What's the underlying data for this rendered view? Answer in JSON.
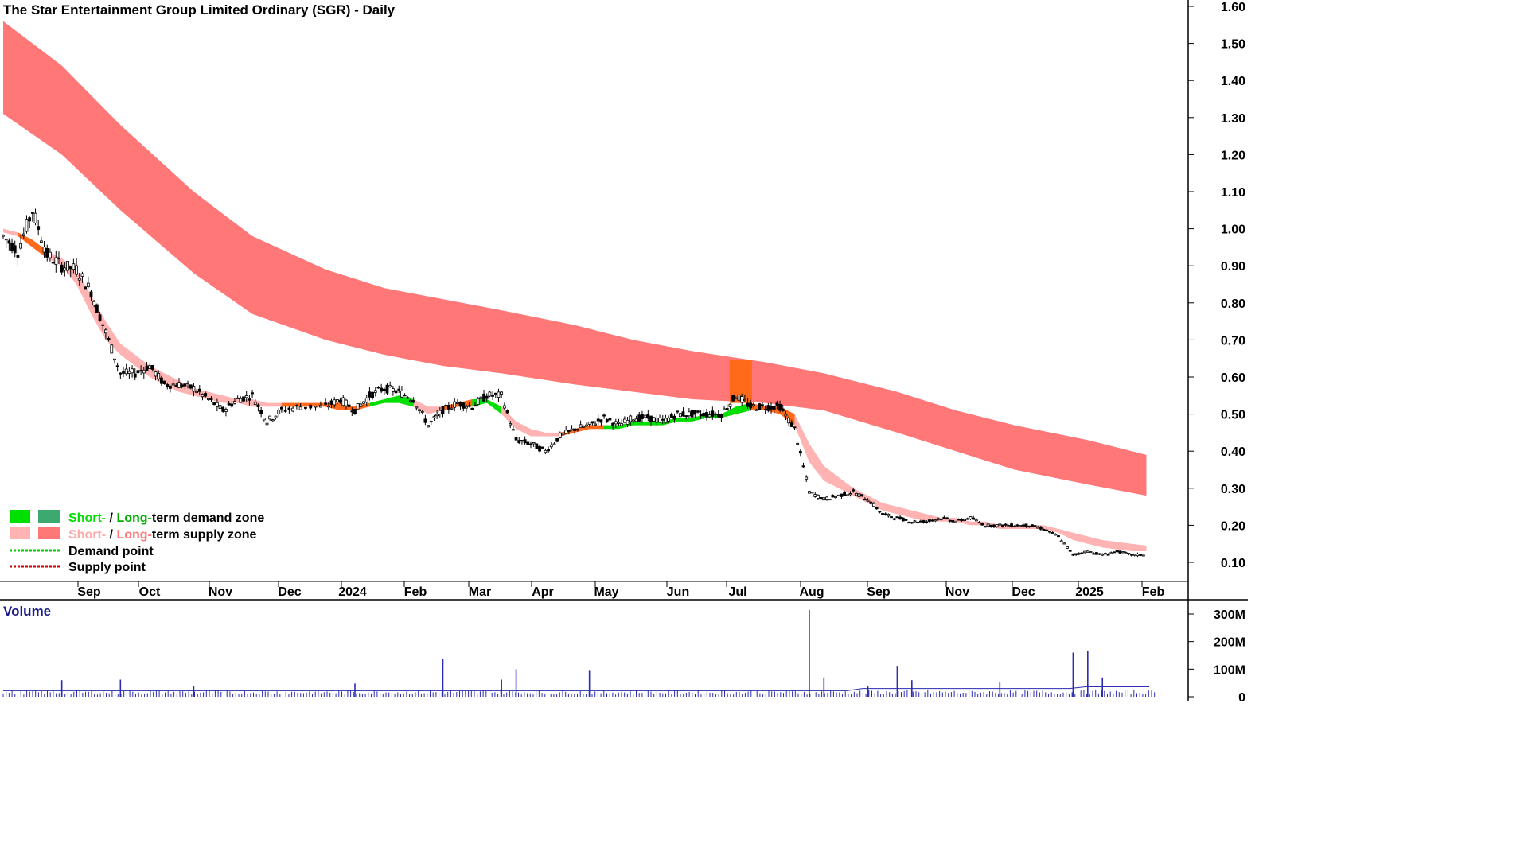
{
  "chart_data": {
    "type": "candlestick",
    "title": "The Star Entertainment Group Limited Ordinary (SGR) - Daily",
    "price_axis": {
      "ticks": [
        "0.10",
        "0.20",
        "0.30",
        "0.40",
        "0.50",
        "0.60",
        "0.70",
        "0.80",
        "0.90",
        "1.00",
        "1.10",
        "1.20",
        "1.30",
        "1.40",
        "1.50",
        "1.60"
      ],
      "range": [
        0.05,
        1.62
      ]
    },
    "x_ticks": [
      "Sep",
      "Oct",
      "Nov",
      "Dec",
      "2024",
      "Feb",
      "Mar",
      "Apr",
      "May",
      "Jun",
      "Jul",
      "Aug",
      "Sep",
      "Nov",
      "Dec",
      "2025",
      "Feb"
    ],
    "price_series": [
      [
        "2023-08-07",
        0.98
      ],
      [
        "2023-08-14",
        0.94
      ],
      [
        "2023-08-21",
        1.05
      ],
      [
        "2023-08-28",
        0.93
      ],
      [
        "2023-09-04",
        0.9
      ],
      [
        "2023-09-11",
        0.89
      ],
      [
        "2023-09-18",
        0.83
      ],
      [
        "2023-09-25",
        0.72
      ],
      [
        "2023-10-02",
        0.61
      ],
      [
        "2023-10-09",
        0.61
      ],
      [
        "2023-10-16",
        0.63
      ],
      [
        "2023-10-23",
        0.58
      ],
      [
        "2023-10-30",
        0.58
      ],
      [
        "2023-11-06",
        0.57
      ],
      [
        "2023-11-13",
        0.54
      ],
      [
        "2023-11-20",
        0.51
      ],
      [
        "2023-11-27",
        0.54
      ],
      [
        "2023-12-04",
        0.55
      ],
      [
        "2023-12-11",
        0.48
      ],
      [
        "2023-12-18",
        0.51
      ],
      [
        "2023-12-27",
        0.52
      ],
      [
        "2024-01-08",
        0.52
      ],
      [
        "2024-01-15",
        0.54
      ],
      [
        "2024-01-22",
        0.51
      ],
      [
        "2024-01-29",
        0.55
      ],
      [
        "2024-02-05",
        0.57
      ],
      [
        "2024-02-12",
        0.56
      ],
      [
        "2024-02-19",
        0.54
      ],
      [
        "2024-02-26",
        0.47
      ],
      [
        "2024-03-04",
        0.51
      ],
      [
        "2024-03-11",
        0.53
      ],
      [
        "2024-03-18",
        0.52
      ],
      [
        "2024-03-25",
        0.55
      ],
      [
        "2024-04-01",
        0.55
      ],
      [
        "2024-04-08",
        0.43
      ],
      [
        "2024-04-15",
        0.42
      ],
      [
        "2024-04-22",
        0.4
      ],
      [
        "2024-04-29",
        0.44
      ],
      [
        "2024-05-06",
        0.46
      ],
      [
        "2024-05-13",
        0.47
      ],
      [
        "2024-05-20",
        0.49
      ],
      [
        "2024-05-27",
        0.47
      ],
      [
        "2024-06-03",
        0.49
      ],
      [
        "2024-06-10",
        0.49
      ],
      [
        "2024-06-17",
        0.48
      ],
      [
        "2024-06-24",
        0.5
      ],
      [
        "2024-07-01",
        0.5
      ],
      [
        "2024-07-08",
        0.5
      ],
      [
        "2024-07-15",
        0.5
      ],
      [
        "2024-07-22",
        0.55
      ],
      [
        "2024-07-29",
        0.52
      ],
      [
        "2024-08-05",
        0.52
      ],
      [
        "2024-08-12",
        0.52
      ],
      [
        "2024-08-19",
        0.46
      ],
      [
        "2024-08-26",
        0.29
      ],
      [
        "2024-09-02",
        0.27
      ],
      [
        "2024-09-09",
        0.28
      ],
      [
        "2024-09-16",
        0.29
      ],
      [
        "2024-09-23",
        0.27
      ],
      [
        "2024-09-30",
        0.23
      ],
      [
        "2024-10-07",
        0.22
      ],
      [
        "2024-10-14",
        0.21
      ],
      [
        "2024-10-21",
        0.21
      ],
      [
        "2024-10-28",
        0.22
      ],
      [
        "2024-11-04",
        0.21
      ],
      [
        "2024-11-11",
        0.22
      ],
      [
        "2024-11-18",
        0.2
      ],
      [
        "2024-11-25",
        0.2
      ],
      [
        "2024-12-02",
        0.2
      ],
      [
        "2024-12-09",
        0.2
      ],
      [
        "2024-12-16",
        0.19
      ],
      [
        "2024-12-23",
        0.17
      ],
      [
        "2024-12-30",
        0.12
      ],
      [
        "2025-01-06",
        0.13
      ],
      [
        "2025-01-13",
        0.12
      ],
      [
        "2025-01-20",
        0.13
      ],
      [
        "2025-01-27",
        0.12
      ],
      [
        "2025-02-03",
        0.12
      ]
    ],
    "short_term_zone": {
      "upper": [
        1.0,
        0.99,
        0.97,
        0.94,
        0.92,
        0.89,
        0.82,
        0.75,
        0.69,
        0.66,
        0.63,
        0.61,
        0.59,
        0.57,
        0.56,
        0.55,
        0.54,
        0.54,
        0.53,
        0.53,
        0.53,
        0.53,
        0.53,
        0.52,
        0.53,
        0.54,
        0.55,
        0.54,
        0.52,
        0.52,
        0.53,
        0.54,
        0.54,
        0.52,
        0.48,
        0.46,
        0.45,
        0.45,
        0.46,
        0.47,
        0.47,
        0.47,
        0.48,
        0.48,
        0.48,
        0.49,
        0.49,
        0.5,
        0.5,
        0.52,
        0.53,
        0.52,
        0.52,
        0.5,
        0.42,
        0.36,
        0.33,
        0.3,
        0.28,
        0.26,
        0.25,
        0.24,
        0.23,
        0.22,
        0.22,
        0.21,
        0.21,
        0.2,
        0.2,
        0.2,
        0.2,
        0.19,
        0.18,
        0.17,
        0.16,
        0.155,
        0.15,
        0.145
      ],
      "lower": [
        0.99,
        0.98,
        0.95,
        0.92,
        0.9,
        0.85,
        0.77,
        0.7,
        0.66,
        0.63,
        0.6,
        0.58,
        0.56,
        0.55,
        0.54,
        0.53,
        0.53,
        0.52,
        0.52,
        0.52,
        0.52,
        0.52,
        0.51,
        0.51,
        0.52,
        0.53,
        0.53,
        0.52,
        0.5,
        0.51,
        0.52,
        0.52,
        0.53,
        0.5,
        0.46,
        0.44,
        0.44,
        0.44,
        0.45,
        0.46,
        0.46,
        0.46,
        0.47,
        0.47,
        0.47,
        0.48,
        0.48,
        0.49,
        0.49,
        0.5,
        0.51,
        0.51,
        0.5,
        0.47,
        0.37,
        0.32,
        0.3,
        0.28,
        0.26,
        0.24,
        0.23,
        0.22,
        0.21,
        0.21,
        0.21,
        0.2,
        0.2,
        0.19,
        0.19,
        0.19,
        0.19,
        0.18,
        0.16,
        0.15,
        0.14,
        0.135,
        0.13,
        0.13
      ]
    },
    "long_term_supply_zone": {
      "x": [
        "2023-08-07",
        "2023-09-04",
        "2023-10-02",
        "2023-11-06",
        "2023-12-04",
        "2024-01-08",
        "2024-02-05",
        "2024-03-04",
        "2024-04-01",
        "2024-05-06",
        "2024-06-03",
        "2024-07-01",
        "2024-08-05",
        "2024-09-02",
        "2024-10-07",
        "2024-11-04",
        "2024-12-02",
        "2025-01-06",
        "2025-02-03"
      ],
      "upper": [
        1.56,
        1.44,
        1.28,
        1.1,
        0.98,
        0.89,
        0.84,
        0.81,
        0.78,
        0.74,
        0.7,
        0.67,
        0.64,
        0.61,
        0.56,
        0.51,
        0.47,
        0.43,
        0.39
      ],
      "lower": [
        1.31,
        1.2,
        1.05,
        0.88,
        0.77,
        0.7,
        0.66,
        0.63,
        0.61,
        0.58,
        0.56,
        0.54,
        0.53,
        0.51,
        0.45,
        0.4,
        0.35,
        0.31,
        0.28
      ]
    },
    "volume": {
      "label": "Volume",
      "ticks": [
        "0",
        "100M",
        "200M",
        "300M"
      ],
      "spikes": [
        [
          "2023-09-04",
          60
        ],
        [
          "2023-10-02",
          62
        ],
        [
          "2023-11-06",
          38
        ],
        [
          "2024-01-22",
          48
        ],
        [
          "2024-03-04",
          136
        ],
        [
          "2024-04-01",
          62
        ],
        [
          "2024-04-08",
          100
        ],
        [
          "2024-05-13",
          94
        ],
        [
          "2024-08-26",
          315
        ],
        [
          "2024-09-02",
          70
        ],
        [
          "2024-09-23",
          40
        ],
        [
          "2024-10-07",
          112
        ],
        [
          "2024-10-14",
          60
        ],
        [
          "2024-11-25",
          54
        ],
        [
          "2024-12-30",
          160
        ],
        [
          "2025-01-06",
          165
        ],
        [
          "2025-01-13",
          70
        ]
      ],
      "baseline": 20
    },
    "legend": [
      {
        "parts": [
          "Short-",
          " / ",
          "Long-",
          "term demand zone"
        ],
        "colors": [
          "#00e000",
          "#000000",
          "#00b000",
          "#000000"
        ],
        "swatches": [
          "#00e000",
          "#3caa6e"
        ]
      },
      {
        "parts": [
          "Short-",
          " / ",
          "Long-",
          "term supply zone"
        ],
        "colors": [
          "#ffaaaa",
          "#000000",
          "#ff7777",
          "#000000"
        ],
        "swatches": [
          "#ffb3b3",
          "#ff7777"
        ]
      },
      {
        "parts": [
          "Demand point"
        ],
        "colors": [
          "#000000"
        ],
        "dots": "#00cc00"
      },
      {
        "parts": [
          "Supply point"
        ],
        "colors": [
          "#000000"
        ],
        "dots": "#cc0000"
      }
    ],
    "colors": {
      "long_supply": "#ff7777",
      "short_supply": "#ffb3b3",
      "short_supply_active": "#ff6a1a",
      "short_demand": "#00e000",
      "volume": "#2b2bb3",
      "highlight": "#ff6a1a"
    }
  }
}
